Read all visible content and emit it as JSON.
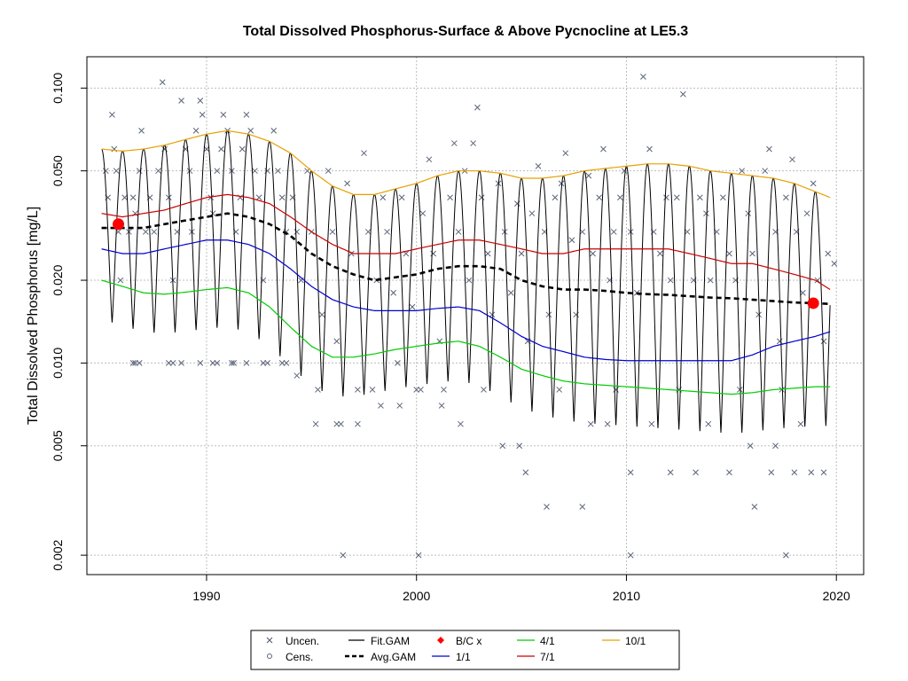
{
  "chart_data": {
    "type": "scatter",
    "title": "Total Dissolved Phosphorus-Surface & Above Pycnocline at LE5.3",
    "xlabel": "",
    "ylabel": "Total Dissolved Phosphorus [mg/L]",
    "xlim": [
      1984.3,
      2021.3
    ],
    "ylim": [
      0.0017,
      0.13
    ],
    "y_scale": "log",
    "x_ticks": [
      1990,
      2000,
      2010,
      2020
    ],
    "y_ticks": [
      0.002,
      0.005,
      0.01,
      0.02,
      0.05,
      0.1
    ],
    "y_tick_labels": [
      "0.002",
      "0.005",
      "0.010",
      "0.020",
      "0.050",
      "0.100"
    ],
    "grid": true,
    "legend_position": "bottom-center",
    "legend": [
      {
        "label": "Uncen.",
        "symbol": "x"
      },
      {
        "label": "Fit.GAM",
        "symbol": "line"
      },
      {
        "label": "B/C x",
        "symbol": "diamond"
      },
      {
        "label": "4/1",
        "symbol": "line"
      },
      {
        "label": "10/1",
        "symbol": "line"
      },
      {
        "label": "Cens.",
        "symbol": "circle"
      },
      {
        "label": "Avg.GAM",
        "symbol": "dashed-line"
      },
      {
        "label": "1/1",
        "symbol": "line"
      },
      {
        "label": "7/1",
        "symbol": "line"
      }
    ],
    "colors": {
      "points": "#5a6478",
      "fit_gam": "#000000",
      "avg_gam": "#000000",
      "s1_1": "#0000cc",
      "s4_1": "#00cc00",
      "s7_1": "#cc0000",
      "s10_1": "#e6a000",
      "bc": "#ff0000",
      "grid": "#bdbdbd"
    },
    "series": [
      {
        "name": "10/1",
        "x": [
          1985,
          1986,
          1987,
          1988,
          1989,
          1990,
          1991,
          1992,
          1993,
          1994,
          1995,
          1996,
          1997,
          1998,
          1999,
          2000,
          2001,
          2002,
          2003,
          2004,
          2005,
          2006,
          2007,
          2008,
          2009,
          2010,
          2011,
          2012,
          2013,
          2014,
          2015,
          2016,
          2017,
          2018,
          2019,
          2019.7
        ],
        "values": [
          0.06,
          0.059,
          0.06,
          0.062,
          0.065,
          0.068,
          0.07,
          0.068,
          0.064,
          0.058,
          0.05,
          0.044,
          0.041,
          0.041,
          0.043,
          0.045,
          0.048,
          0.05,
          0.05,
          0.049,
          0.047,
          0.047,
          0.048,
          0.05,
          0.051,
          0.052,
          0.053,
          0.053,
          0.052,
          0.05,
          0.049,
          0.048,
          0.047,
          0.045,
          0.042,
          0.04
        ]
      },
      {
        "name": "7/1",
        "x": [
          1985,
          1986,
          1987,
          1988,
          1989,
          1990,
          1991,
          1992,
          1993,
          1994,
          1995,
          1996,
          1997,
          1998,
          1999,
          2000,
          2001,
          2002,
          2003,
          2004,
          2005,
          2006,
          2007,
          2008,
          2009,
          2010,
          2011,
          2012,
          2013,
          2014,
          2015,
          2016,
          2017,
          2018,
          2019,
          2019.7
        ],
        "values": [
          0.035,
          0.034,
          0.035,
          0.036,
          0.038,
          0.04,
          0.041,
          0.04,
          0.038,
          0.034,
          0.03,
          0.027,
          0.025,
          0.025,
          0.025,
          0.026,
          0.027,
          0.028,
          0.028,
          0.027,
          0.026,
          0.025,
          0.025,
          0.026,
          0.026,
          0.026,
          0.026,
          0.026,
          0.025,
          0.024,
          0.023,
          0.023,
          0.022,
          0.021,
          0.02,
          0.0185
        ]
      },
      {
        "name": "1/1",
        "x": [
          1985,
          1986,
          1987,
          1988,
          1989,
          1990,
          1991,
          1992,
          1993,
          1994,
          1995,
          1996,
          1997,
          1998,
          1999,
          2000,
          2001,
          2002,
          2003,
          2004,
          2005,
          2006,
          2007,
          2008,
          2009,
          2010,
          2011,
          2012,
          2013,
          2014,
          2015,
          2016,
          2017,
          2018,
          2019,
          2019.7
        ],
        "values": [
          0.026,
          0.025,
          0.025,
          0.026,
          0.027,
          0.028,
          0.028,
          0.027,
          0.025,
          0.022,
          0.019,
          0.017,
          0.016,
          0.0155,
          0.0155,
          0.0155,
          0.0158,
          0.016,
          0.0155,
          0.014,
          0.0125,
          0.0115,
          0.011,
          0.0105,
          0.0103,
          0.0102,
          0.0102,
          0.0102,
          0.0102,
          0.0102,
          0.0102,
          0.0107,
          0.0115,
          0.012,
          0.0125,
          0.013
        ]
      },
      {
        "name": "4/1",
        "x": [
          1985,
          1986,
          1987,
          1988,
          1989,
          1990,
          1991,
          1992,
          1993,
          1994,
          1995,
          1996,
          1997,
          1998,
          1999,
          2000,
          2001,
          2002,
          2003,
          2004,
          2005,
          2006,
          2007,
          2008,
          2009,
          2010,
          2011,
          2012,
          2013,
          2014,
          2015,
          2016,
          2017,
          2018,
          2019,
          2019.7
        ],
        "values": [
          0.02,
          0.019,
          0.018,
          0.0178,
          0.0181,
          0.0185,
          0.0188,
          0.018,
          0.016,
          0.0135,
          0.0115,
          0.0105,
          0.0105,
          0.0108,
          0.0112,
          0.0115,
          0.0118,
          0.012,
          0.0115,
          0.0105,
          0.0095,
          0.009,
          0.0086,
          0.0084,
          0.0083,
          0.0082,
          0.0081,
          0.008,
          0.0079,
          0.0078,
          0.0077,
          0.0078,
          0.008,
          0.0081,
          0.0082,
          0.0082
        ]
      },
      {
        "name": "Avg.GAM",
        "x": [
          1985,
          1986,
          1987,
          1988,
          1989,
          1990,
          1991,
          1992,
          1993,
          1994,
          1995,
          1996,
          1997,
          1998,
          1999,
          2000,
          2001,
          2002,
          2003,
          2004,
          2005,
          2006,
          2007,
          2008,
          2009,
          2010,
          2011,
          2012,
          2013,
          2014,
          2015,
          2016,
          2017,
          2018,
          2019,
          2019.7
        ],
        "values": [
          0.031,
          0.031,
          0.031,
          0.032,
          0.033,
          0.034,
          0.035,
          0.034,
          0.032,
          0.029,
          0.025,
          0.0225,
          0.021,
          0.02,
          0.0205,
          0.021,
          0.022,
          0.0225,
          0.0225,
          0.022,
          0.02,
          0.019,
          0.0185,
          0.0185,
          0.0183,
          0.018,
          0.0178,
          0.0177,
          0.0175,
          0.0173,
          0.0172,
          0.017,
          0.0168,
          0.0166,
          0.0165,
          0.0164
        ]
      },
      {
        "name": "B/C x",
        "x": [
          1985.8,
          2018.9
        ],
        "values": [
          0.032,
          0.0165
        ]
      }
    ],
    "observations": [
      [
        1985.2,
        0.05
      ],
      [
        1985.3,
        0.04
      ],
      [
        1985.5,
        0.08
      ],
      [
        1985.6,
        0.06
      ],
      [
        1985.7,
        0.05
      ],
      [
        1985.8,
        0.03
      ],
      [
        1985.9,
        0.02
      ],
      [
        1986.1,
        0.04
      ],
      [
        1986.3,
        0.03
      ],
      [
        1986.5,
        0.04
      ],
      [
        1986.6,
        0.035
      ],
      [
        1986.8,
        0.05
      ],
      [
        1986.9,
        0.07
      ],
      [
        1987.1,
        0.03
      ],
      [
        1987.3,
        0.04
      ],
      [
        1987.5,
        0.03
      ],
      [
        1987.7,
        0.05
      ],
      [
        1987.9,
        0.105
      ],
      [
        1988.0,
        0.06
      ],
      [
        1988.2,
        0.04
      ],
      [
        1988.4,
        0.02
      ],
      [
        1988.6,
        0.03
      ],
      [
        1988.8,
        0.09
      ],
      [
        1989.0,
        0.06
      ],
      [
        1989.2,
        0.05
      ],
      [
        1989.3,
        0.03
      ],
      [
        1989.5,
        0.07
      ],
      [
        1989.7,
        0.09
      ],
      [
        1989.8,
        0.08
      ],
      [
        1990.0,
        0.06
      ],
      [
        1990.2,
        0.04
      ],
      [
        1990.3,
        0.035
      ],
      [
        1990.5,
        0.05
      ],
      [
        1990.7,
        0.06
      ],
      [
        1990.8,
        0.08
      ],
      [
        1991.0,
        0.07
      ],
      [
        1991.2,
        0.05
      ],
      [
        1991.4,
        0.03
      ],
      [
        1991.6,
        0.04
      ],
      [
        1991.7,
        0.06
      ],
      [
        1991.9,
        0.08
      ],
      [
        1992.1,
        0.07
      ],
      [
        1992.3,
        0.05
      ],
      [
        1992.5,
        0.04
      ],
      [
        1992.7,
        0.02
      ],
      [
        1992.9,
        0.05
      ],
      [
        1993.2,
        0.07
      ],
      [
        1993.4,
        0.05
      ],
      [
        1993.6,
        0.04
      ],
      [
        1993.8,
        0.03
      ],
      [
        1994.1,
        0.04
      ],
      [
        1994.3,
        0.03
      ],
      [
        1994.5,
        0.02
      ],
      [
        1994.8,
        0.05
      ],
      [
        1995.0,
        0.03
      ],
      [
        1995.3,
        0.008
      ],
      [
        1995.5,
        0.015
      ],
      [
        1995.8,
        0.05
      ],
      [
        1996.0,
        0.03
      ],
      [
        1996.2,
        0.012
      ],
      [
        1996.4,
        0.006
      ],
      [
        1996.7,
        0.045
      ],
      [
        1996.9,
        0.025
      ],
      [
        1997.2,
        0.008
      ],
      [
        1997.5,
        0.058
      ],
      [
        1997.7,
        0.03
      ],
      [
        1997.9,
        0.008
      ],
      [
        1998.1,
        0.02
      ],
      [
        1998.4,
        0.04
      ],
      [
        1998.6,
        0.03
      ],
      [
        1998.9,
        0.018
      ],
      [
        1999.1,
        0.01
      ],
      [
        1999.3,
        0.04
      ],
      [
        1999.5,
        0.025
      ],
      [
        1999.8,
        0.016
      ],
      [
        2000.0,
        0.008
      ],
      [
        2000.3,
        0.035
      ],
      [
        2000.6,
        0.055
      ],
      [
        2000.8,
        0.025
      ],
      [
        2001.1,
        0.012
      ],
      [
        2001.3,
        0.008
      ],
      [
        2001.6,
        0.04
      ],
      [
        2001.8,
        0.063
      ],
      [
        2002.0,
        0.03
      ],
      [
        2002.3,
        0.05
      ],
      [
        2002.5,
        0.02
      ],
      [
        2002.7,
        0.063
      ],
      [
        2002.9,
        0.085
      ],
      [
        2003.1,
        0.04
      ],
      [
        2003.4,
        0.025
      ],
      [
        2003.6,
        0.015
      ],
      [
        2003.9,
        0.045
      ],
      [
        2004.2,
        0.03
      ],
      [
        2004.5,
        0.018
      ],
      [
        2004.8,
        0.038
      ],
      [
        2005.0,
        0.025
      ],
      [
        2005.3,
        0.012
      ],
      [
        2005.5,
        0.035
      ],
      [
        2005.8,
        0.052
      ],
      [
        2006.1,
        0.03
      ],
      [
        2006.3,
        0.015
      ],
      [
        2006.6,
        0.04
      ],
      [
        2006.9,
        0.045
      ],
      [
        2007.1,
        0.058
      ],
      [
        2007.4,
        0.028
      ],
      [
        2007.6,
        0.015
      ],
      [
        2007.9,
        0.03
      ],
      [
        2008.2,
        0.048
      ],
      [
        2008.4,
        0.025
      ],
      [
        2008.7,
        0.04
      ],
      [
        2008.9,
        0.06
      ],
      [
        2009.2,
        0.02
      ],
      [
        2009.4,
        0.03
      ],
      [
        2009.7,
        0.04
      ],
      [
        2009.9,
        0.05
      ],
      [
        2010.2,
        0.03
      ],
      [
        2010.5,
        0.018
      ],
      [
        2010.8,
        0.11
      ],
      [
        2011.1,
        0.06
      ],
      [
        2011.3,
        0.03
      ],
      [
        2011.6,
        0.025
      ],
      [
        2011.9,
        0.04
      ],
      [
        2012.1,
        0.02
      ],
      [
        2012.4,
        0.04
      ],
      [
        2012.7,
        0.095
      ],
      [
        2012.9,
        0.03
      ],
      [
        2013.2,
        0.02
      ],
      [
        2013.5,
        0.04
      ],
      [
        2013.8,
        0.035
      ],
      [
        2014.0,
        0.02
      ],
      [
        2014.3,
        0.03
      ],
      [
        2014.6,
        0.04
      ],
      [
        2014.9,
        0.025
      ],
      [
        2015.2,
        0.02
      ],
      [
        2015.5,
        0.05
      ],
      [
        2015.8,
        0.035
      ],
      [
        2016.0,
        0.025
      ],
      [
        2016.3,
        0.015
      ],
      [
        2016.6,
        0.05
      ],
      [
        2016.8,
        0.06
      ],
      [
        2017.1,
        0.03
      ],
      [
        2017.3,
        0.012
      ],
      [
        2017.6,
        0.04
      ],
      [
        2017.9,
        0.055
      ],
      [
        2018.1,
        0.03
      ],
      [
        2018.4,
        0.018
      ],
      [
        2018.6,
        0.035
      ],
      [
        2018.9,
        0.045
      ],
      [
        2019.1,
        0.02
      ],
      [
        2019.4,
        0.012
      ],
      [
        2019.6,
        0.025
      ],
      [
        2019.9,
        0.023
      ],
      [
        1986.5,
        0.01
      ],
      [
        1986.6,
        0.01
      ],
      [
        1986.8,
        0.01
      ],
      [
        1988.2,
        0.01
      ],
      [
        1988.4,
        0.01
      ],
      [
        1988.8,
        0.01
      ],
      [
        1989.7,
        0.01
      ],
      [
        1990.3,
        0.01
      ],
      [
        1990.5,
        0.01
      ],
      [
        1991.2,
        0.01
      ],
      [
        1991.3,
        0.01
      ],
      [
        1991.9,
        0.01
      ],
      [
        1992.7,
        0.01
      ],
      [
        1992.9,
        0.01
      ],
      [
        1993.6,
        0.01
      ],
      [
        1993.8,
        0.01
      ],
      [
        1994.3,
        0.009
      ],
      [
        1996.5,
        0.002
      ],
      [
        2000.1,
        0.002
      ],
      [
        2010.2,
        0.002
      ],
      [
        2017.6,
        0.002
      ],
      [
        2005.2,
        0.004
      ],
      [
        2006.2,
        0.003
      ],
      [
        2007.9,
        0.003
      ],
      [
        2010.2,
        0.004
      ],
      [
        2012.1,
        0.004
      ],
      [
        2013.3,
        0.004
      ],
      [
        2014.9,
        0.004
      ],
      [
        2016.1,
        0.003
      ],
      [
        2016.9,
        0.004
      ],
      [
        2018.0,
        0.004
      ],
      [
        2018.8,
        0.004
      ],
      [
        2019.4,
        0.004
      ],
      [
        2004.1,
        0.005
      ],
      [
        2004.9,
        0.005
      ],
      [
        2015.9,
        0.005
      ],
      [
        2017.1,
        0.005
      ],
      [
        2002.1,
        0.006
      ],
      [
        2001.2,
        0.007
      ],
      [
        2008.3,
        0.006
      ],
      [
        2009.1,
        0.006
      ],
      [
        2011.2,
        0.006
      ],
      [
        2013.9,
        0.006
      ],
      [
        2018.3,
        0.006
      ],
      [
        1997.2,
        0.006
      ],
      [
        1998.3,
        0.007
      ],
      [
        1999.2,
        0.007
      ],
      [
        1995.2,
        0.006
      ],
      [
        1996.2,
        0.006
      ],
      [
        2000.2,
        0.008
      ],
      [
        2003.2,
        0.008
      ],
      [
        2006.8,
        0.008
      ],
      [
        2009.5,
        0.008
      ],
      [
        2012.5,
        0.008
      ],
      [
        2015.4,
        0.008
      ],
      [
        2017.4,
        0.008
      ]
    ]
  },
  "legend_labels": {
    "uncen": "Uncen.",
    "fitgam": "Fit.GAM",
    "bc": "B/C x",
    "l4": "4/1",
    "l10": "10/1",
    "cens": "Cens.",
    "avggam": "Avg.GAM",
    "l1": "1/1",
    "l7": "7/1"
  }
}
